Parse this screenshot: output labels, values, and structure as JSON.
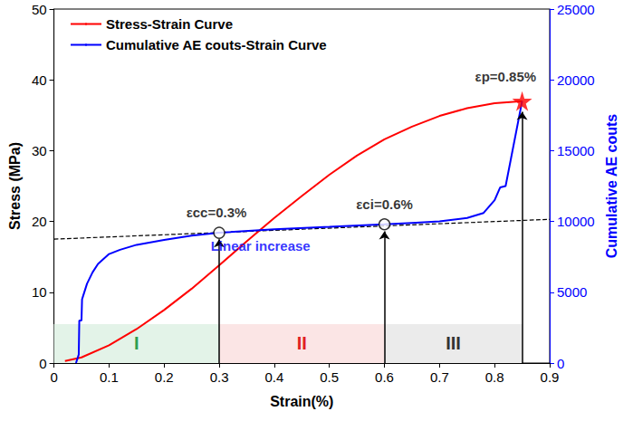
{
  "chart_data": {
    "type": "line",
    "x_label": "Strain(%)",
    "y_label": "Stress (MPa)",
    "y2_label": "Cumulative AE couts",
    "xlim": [
      0,
      0.9
    ],
    "xticks": [
      0,
      0.1,
      0.2,
      0.3,
      0.4,
      0.5,
      0.6,
      0.7,
      0.8,
      0.9
    ],
    "ylim": [
      0,
      50
    ],
    "yticks": [
      0,
      10,
      20,
      30,
      40,
      50
    ],
    "y2lim": [
      0,
      25000
    ],
    "y2ticks": [
      0,
      5000,
      10000,
      15000,
      20000,
      25000
    ],
    "legend": "top-left",
    "grid": false,
    "series": [
      {
        "name": "Stress-Strain Curve",
        "color": "#ff0000",
        "line_style": "solid",
        "x": [
          0.02,
          0.05,
          0.1,
          0.15,
          0.2,
          0.25,
          0.3,
          0.35,
          0.4,
          0.45,
          0.5,
          0.55,
          0.6,
          0.65,
          0.7,
          0.75,
          0.8,
          0.85
        ],
        "values": [
          0.3,
          0.8,
          2.5,
          4.8,
          7.5,
          10.5,
          13.8,
          17.2,
          20.5,
          23.6,
          26.6,
          29.3,
          31.6,
          33.4,
          34.9,
          36,
          36.7,
          37
        ]
      },
      {
        "name": "Cumulative AE couts-Strain Curve",
        "color": "#0000ff",
        "line_style": "solid",
        "axis": "y2",
        "x": [
          0.04,
          0.045,
          0.046,
          0.05,
          0.051,
          0.06,
          0.07,
          0.08,
          0.1,
          0.12,
          0.15,
          0.2,
          0.25,
          0.3,
          0.4,
          0.5,
          0.6,
          0.65,
          0.7,
          0.75,
          0.78,
          0.8,
          0.81,
          0.82,
          0.83,
          0.84,
          0.85
        ],
        "values": [
          0,
          600,
          3000,
          3000,
          4500,
          5600,
          6400,
          7000,
          7700,
          8000,
          8350,
          8700,
          9000,
          9200,
          9450,
          9620,
          9800,
          9900,
          10000,
          10250,
          10600,
          11500,
          12400,
          12500,
          14500,
          16500,
          18500
        ]
      }
    ],
    "trend_line": {
      "axis": "y2",
      "color": "#000000",
      "line_style": "dashed",
      "x": [
        0,
        0.9
      ],
      "values": [
        8750,
        10150
      ]
    },
    "points": [
      {
        "x": 0.3,
        "y": 9200,
        "axis": "y2",
        "marker": "circle",
        "color": "#000000"
      },
      {
        "x": 0.6,
        "y": 9800,
        "axis": "y2",
        "marker": "circle",
        "color": "#000000"
      },
      {
        "x": 0.85,
        "y": 37,
        "marker": "star",
        "color": "#ff0000"
      }
    ],
    "arrows": [
      {
        "x": 0.3,
        "from": 0,
        "to": 17.5
      },
      {
        "x": 0.6,
        "from": 0,
        "to": 18.6
      },
      {
        "x": 0.85,
        "from": 0,
        "to": 35.5
      }
    ],
    "annotations": [
      {
        "text": "εcc=0.3%",
        "x": 0.295,
        "y": 21.3,
        "color": "#000000"
      },
      {
        "text": "εci=0.6%",
        "x": 0.6,
        "y": 22.5,
        "color": "#000000"
      },
      {
        "text": "εp=0.85%",
        "x": 0.82,
        "y": 40.5,
        "color": "#000000"
      },
      {
        "text": "Linear increase",
        "x": 0.375,
        "y": 16.5,
        "color": "#0000ff"
      }
    ],
    "stages": [
      {
        "label": "I",
        "start": 0,
        "end": 0.3,
        "height": 5.5,
        "color": "#2e9e4f",
        "fill": "#e3f3e8"
      },
      {
        "label": "II",
        "start": 0.3,
        "end": 0.6,
        "height": 5.5,
        "color": "#e02020",
        "fill": "#fbe5e5"
      },
      {
        "label": "III",
        "start": 0.6,
        "end": 0.85,
        "height": 5.5,
        "color": "#333333",
        "fill": "#ebebeb"
      }
    ]
  }
}
